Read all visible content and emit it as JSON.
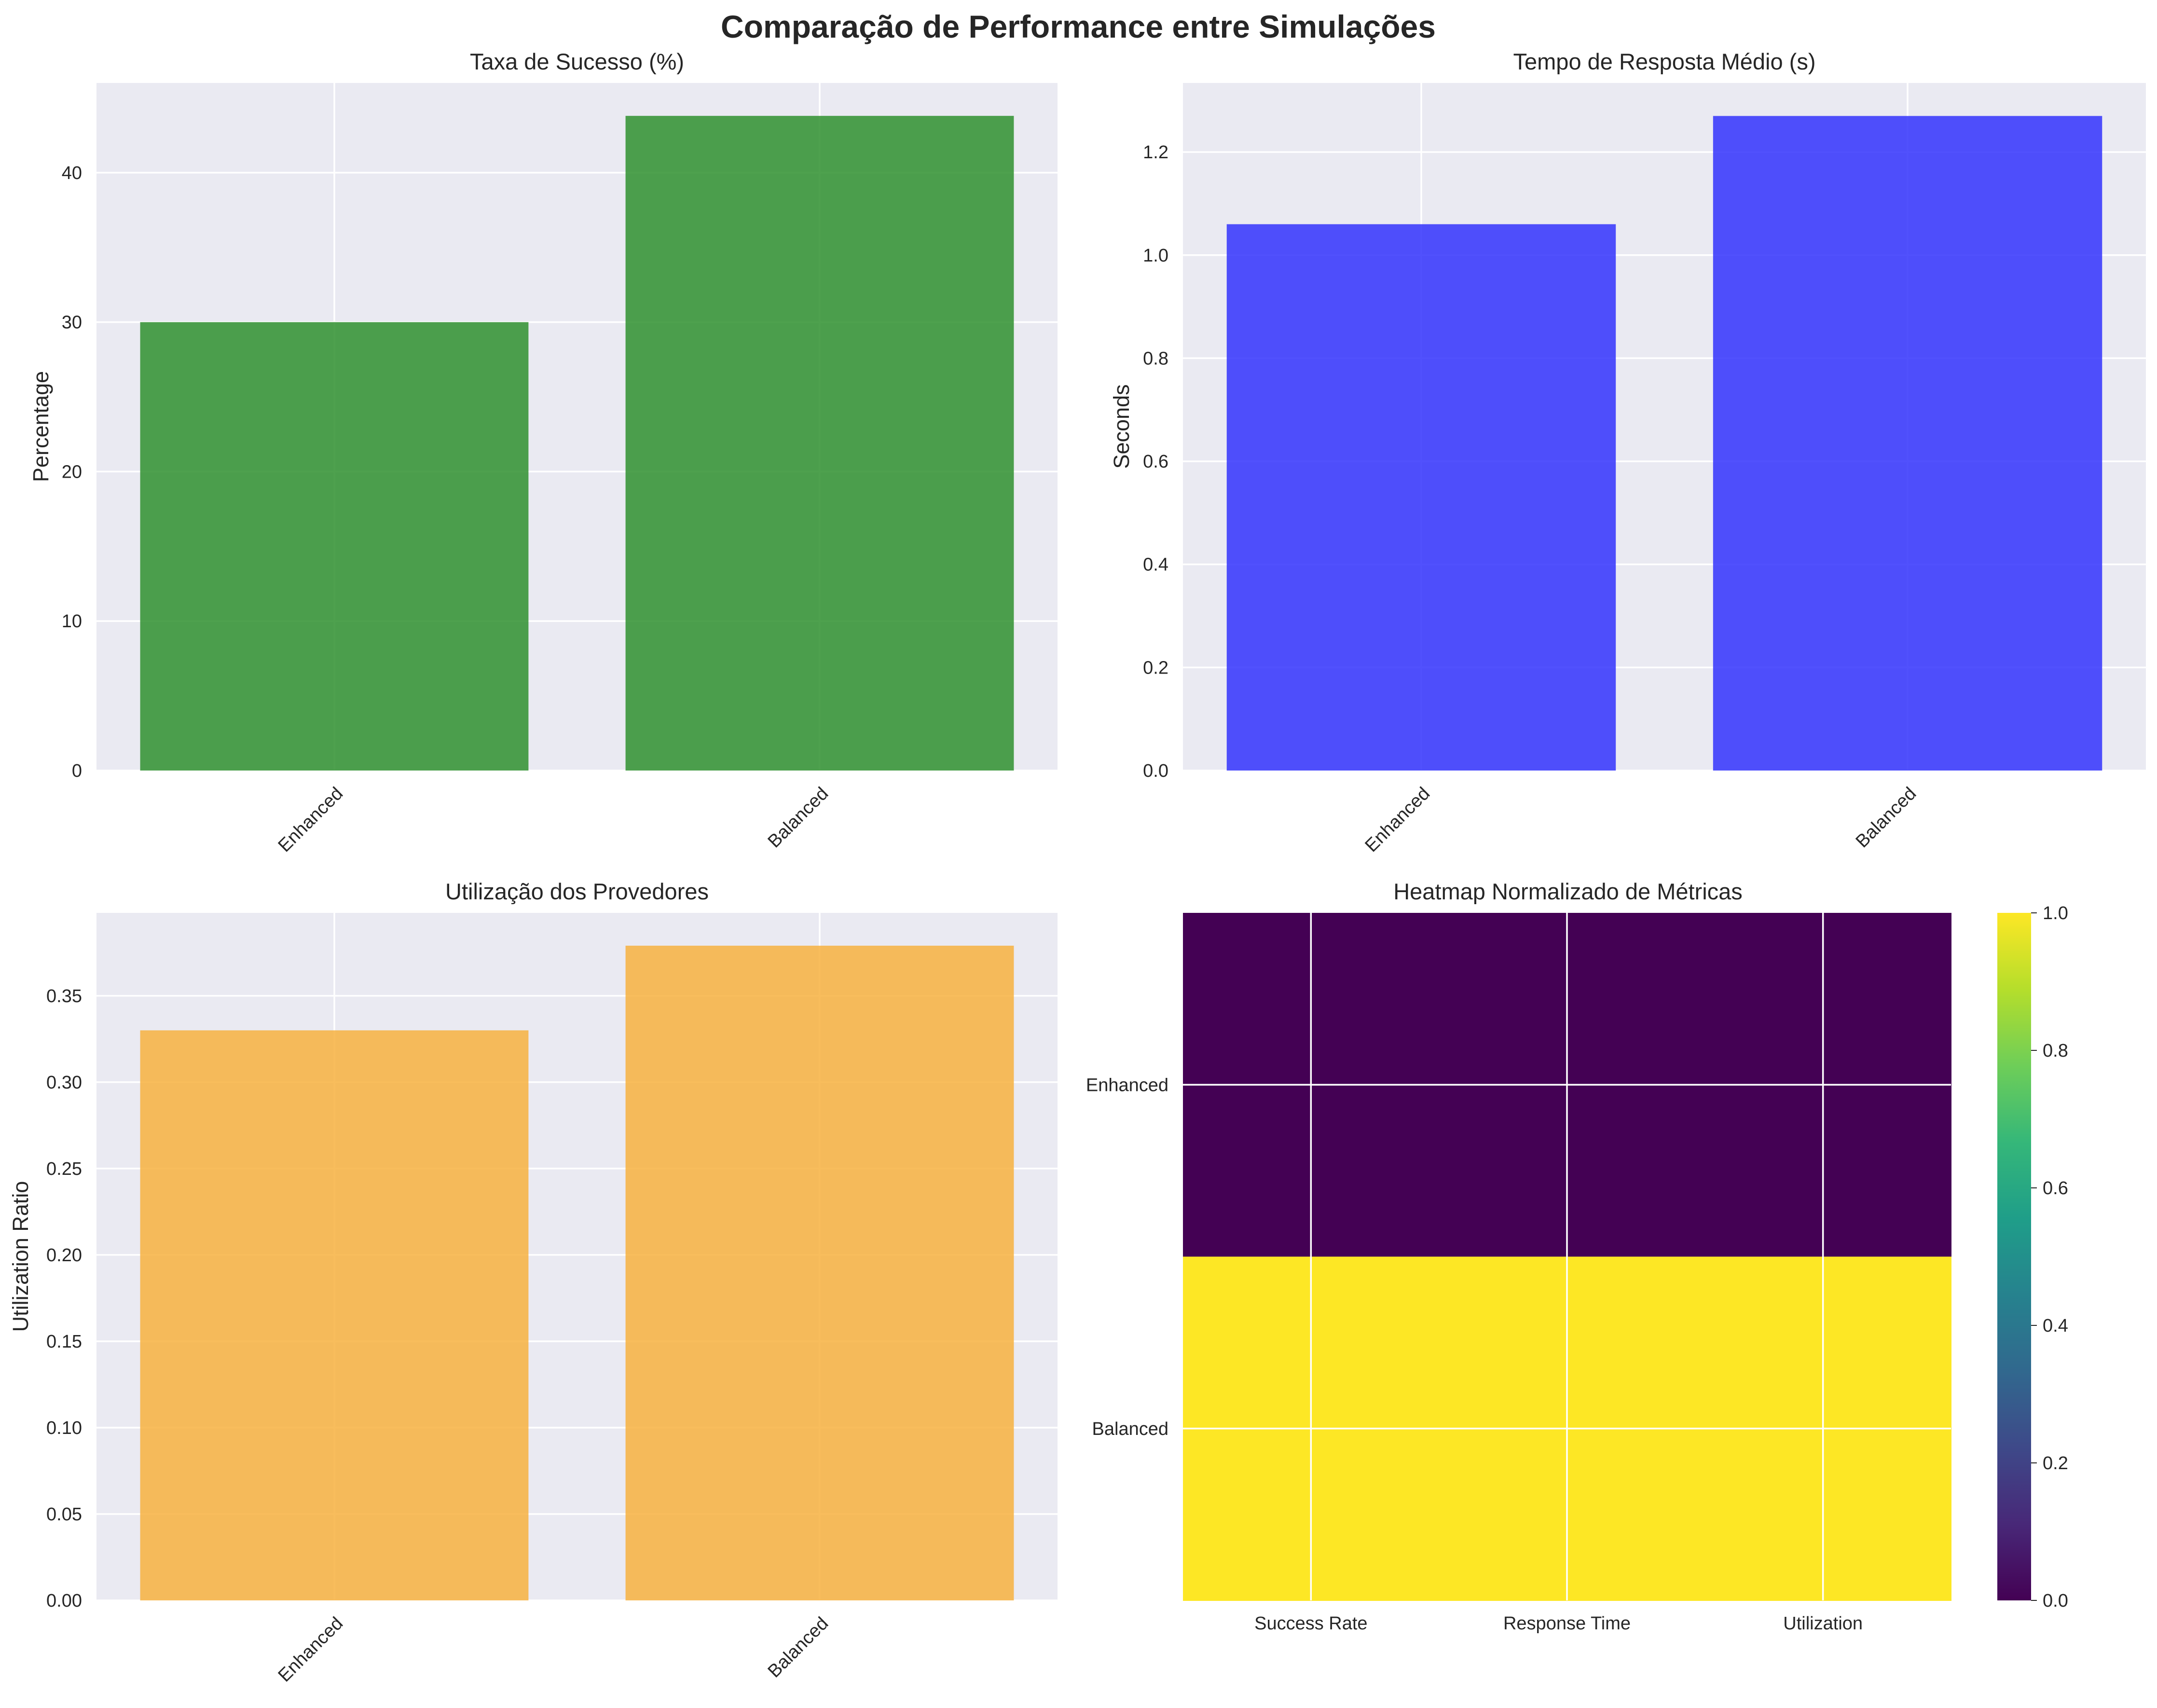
{
  "figure": {
    "title": "Comparação de Performance entre Simulações"
  },
  "colors": {
    "axes_bg": "#eaeaf2",
    "grid": "#ffffff",
    "success_bar": "#2f912f",
    "response_bar": "#3232fd",
    "utilization_bar": "#f7b13f",
    "viridis": [
      "#440154",
      "#482878",
      "#3e4989",
      "#31688e",
      "#26828e",
      "#1f9e89",
      "#35b779",
      "#6ece58",
      "#b5de2b",
      "#fde725"
    ]
  },
  "chart_data": [
    {
      "type": "bar",
      "title": "Taxa de Sucesso (%)",
      "xlabel": "",
      "ylabel": "Percentage",
      "categories": [
        "Enhanced",
        "Balanced"
      ],
      "values": [
        30.0,
        43.8
      ],
      "ylim": [
        0,
        46
      ],
      "yticks": [
        0,
        10,
        20,
        30,
        40
      ],
      "ytick_labels": [
        "0",
        "10",
        "20",
        "30",
        "40"
      ],
      "grid": true
    },
    {
      "type": "bar",
      "title": "Tempo de Resposta Médio (s)",
      "xlabel": "",
      "ylabel": "Seconds",
      "categories": [
        "Enhanced",
        "Balanced"
      ],
      "values": [
        1.06,
        1.27
      ],
      "ylim": [
        0,
        1.334
      ],
      "yticks": [
        0,
        0.2,
        0.4,
        0.6,
        0.8,
        1.0,
        1.2
      ],
      "ytick_labels": [
        "0.0",
        "0.2",
        "0.4",
        "0.6",
        "0.8",
        "1.0",
        "1.2"
      ],
      "grid": true
    },
    {
      "type": "bar",
      "title": "Utilização dos Provedores",
      "xlabel": "",
      "ylabel": "Utilization Ratio",
      "categories": [
        "Enhanced",
        "Balanced"
      ],
      "values": [
        0.33,
        0.379
      ],
      "ylim": [
        0,
        0.398
      ],
      "yticks": [
        0,
        0.05,
        0.1,
        0.15,
        0.2,
        0.25,
        0.3,
        0.35
      ],
      "ytick_labels": [
        "0.00",
        "0.05",
        "0.10",
        "0.15",
        "0.20",
        "0.25",
        "0.30",
        "0.35"
      ],
      "grid": true
    },
    {
      "type": "heatmap",
      "title": "Heatmap Normalizado de Métricas",
      "xlabel": "",
      "ylabel": "",
      "x_categories": [
        "Success Rate",
        "Response Time",
        "Utilization"
      ],
      "y_categories": [
        "Enhanced",
        "Balanced"
      ],
      "values": [
        [
          0,
          0,
          0
        ],
        [
          1,
          1,
          1
        ]
      ],
      "colormap": "viridis",
      "colorbar": {
        "range": [
          0,
          1
        ],
        "ticks": [
          0,
          0.2,
          0.4,
          0.6,
          0.8,
          1.0
        ],
        "tick_labels": [
          "0.0",
          "0.2",
          "0.4",
          "0.6",
          "0.8",
          "1.0"
        ]
      },
      "grid": true
    }
  ]
}
